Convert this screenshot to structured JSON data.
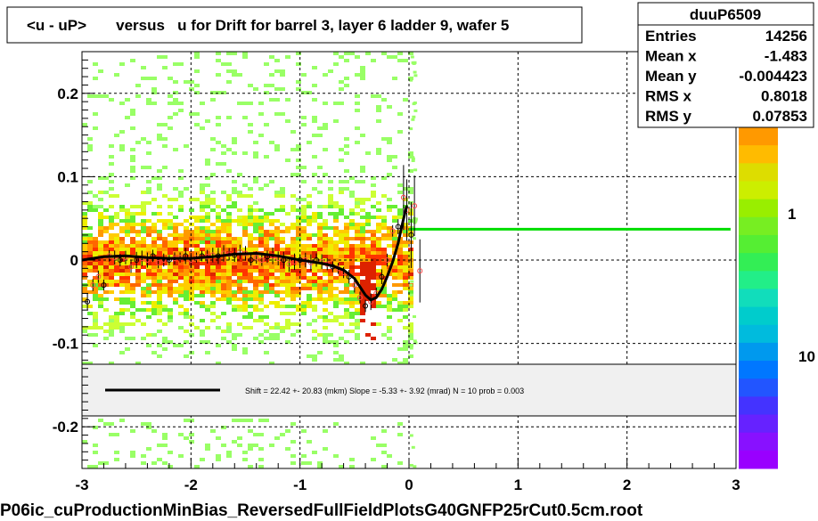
{
  "chart_data": {
    "type": "scatter",
    "title": "<u - uP>       versus   u for Drift for barrel 3, layer 6 ladder 9, wafer 5",
    "xlabel": "",
    "ylabel": "",
    "xlim": [
      -3,
      3
    ],
    "ylim": [
      -0.25,
      0.25
    ],
    "x_ticks": [
      "-3",
      "-2",
      "-1",
      "0",
      "1",
      "2",
      "3"
    ],
    "y_ticks": [
      "-0.2",
      "-0.1",
      "0",
      "0.1",
      "0.2"
    ],
    "grid": true,
    "stats": {
      "name": "duuP6509",
      "rows": [
        {
          "label": "Entries",
          "value": "14256"
        },
        {
          "label": "Mean x",
          "value": "-1.483"
        },
        {
          "label": "Mean y",
          "value": "-0.004423"
        },
        {
          "label": "RMS x",
          "value": "0.8018"
        },
        {
          "label": "RMS y",
          "value": "0.07853"
        }
      ]
    },
    "fit_text": "Shift =    22.42 +- 20.83 (mkm) Slope =    -5.33 +- 3.92 (mrad)  N = 10 prob = 0.003",
    "palette_labels": [
      "1",
      "10"
    ],
    "profile": {
      "x": [
        -2.95,
        -2.9,
        -2.85,
        -2.8,
        -2.75,
        -2.7,
        -2.65,
        -2.6,
        -2.55,
        -2.5,
        -2.45,
        -2.4,
        -2.35,
        -2.3,
        -2.25,
        -2.2,
        -2.15,
        -2.1,
        -2.05,
        -2.0,
        -1.95,
        -1.9,
        -1.85,
        -1.8,
        -1.75,
        -1.7,
        -1.65,
        -1.6,
        -1.55,
        -1.5,
        -1.45,
        -1.4,
        -1.35,
        -1.3,
        -1.25,
        -1.2,
        -1.15,
        -1.1,
        -1.05,
        -1.0,
        -0.95,
        -0.9,
        -0.85,
        -0.8,
        -0.75,
        -0.7,
        -0.65,
        -0.6,
        -0.55,
        -0.5,
        -0.45,
        -0.4,
        -0.35,
        -0.3,
        -0.25,
        -0.2,
        -0.15,
        -0.1,
        -0.05,
        -0.02,
        0.02,
        0.05,
        0.1
      ],
      "y": [
        -0.05,
        -0.03,
        -0.02,
        -0.03,
        0.005,
        0.003,
        0.0,
        0.003,
        -0.008,
        0.0,
        0.002,
        0.0,
        0.005,
        -0.003,
        0.0,
        0.0,
        0.002,
        0.003,
        0.005,
        0.0,
        0.003,
        0.005,
        0.004,
        0.006,
        0.005,
        0.008,
        0.007,
        0.006,
        0.01,
        0.008,
        0.0,
        0.003,
        0.0,
        0.004,
        0.005,
        0.002,
        0.0,
        -0.005,
        -0.002,
        0.0,
        0.0,
        -0.003,
        0.0,
        -0.002,
        -0.005,
        -0.008,
        -0.01,
        -0.015,
        -0.02,
        -0.03,
        -0.045,
        -0.055,
        -0.05,
        -0.04,
        -0.02,
        0.0,
        0.035,
        0.04,
        0.075,
        0.06,
        0.03,
        0.065,
        -0.013
      ]
    },
    "fit_curve": {
      "x": [
        -3.0,
        -2.8,
        -2.6,
        -2.4,
        -2.2,
        -2.0,
        -1.8,
        -1.6,
        -1.4,
        -1.2,
        -1.0,
        -0.8,
        -0.7,
        -0.6,
        -0.5,
        -0.45,
        -0.4,
        -0.35,
        -0.3,
        -0.25,
        -0.2,
        -0.15,
        -0.1,
        -0.07,
        -0.04,
        -0.02
      ],
      "y": [
        0.0,
        0.004,
        0.005,
        0.003,
        0.002,
        0.002,
        0.004,
        0.007,
        0.008,
        0.005,
        0.0,
        -0.004,
        -0.007,
        -0.012,
        -0.022,
        -0.032,
        -0.042,
        -0.048,
        -0.045,
        -0.035,
        -0.02,
        -0.002,
        0.02,
        0.038,
        0.055,
        0.065
      ]
    },
    "flat_line": {
      "x": [
        0.0,
        2.95
      ],
      "y": 0.037
    },
    "colors": {
      "frame": "#000000",
      "fit": "#000000",
      "flat_line": "#00dd00",
      "profile_marker": "#ff4444"
    }
  }
}
